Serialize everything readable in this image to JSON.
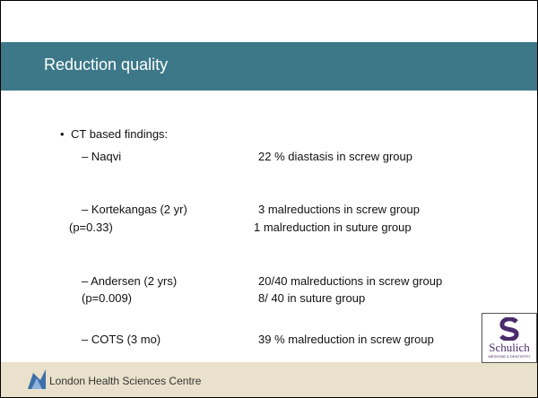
{
  "header": {
    "title": "Reduction quality"
  },
  "bullet": "CT based findings:",
  "rows": [
    {
      "left": "– Naqvi",
      "right": "22 % diastasis in screw group"
    },
    {
      "left": "– Kortekangas (2 yr)",
      "right": "3 malreductions in screw group"
    },
    {
      "left": "(p=0.33)",
      "right": "1 malreduction in suture group"
    },
    {
      "left": "– Andersen (2 yrs)",
      "right": "20/40 malreductions in screw group"
    },
    {
      "left": "(p=0.009)",
      "right": "8/ 40 in suture group"
    },
    {
      "left": "– COTS (3 mo)",
      "right": "39 % malreduction in screw group"
    }
  ],
  "footer": {
    "organization": "London Health Sciences Centre",
    "logo": "Schulich",
    "logo_sub": "MEDICINE & DENTISTRY"
  }
}
